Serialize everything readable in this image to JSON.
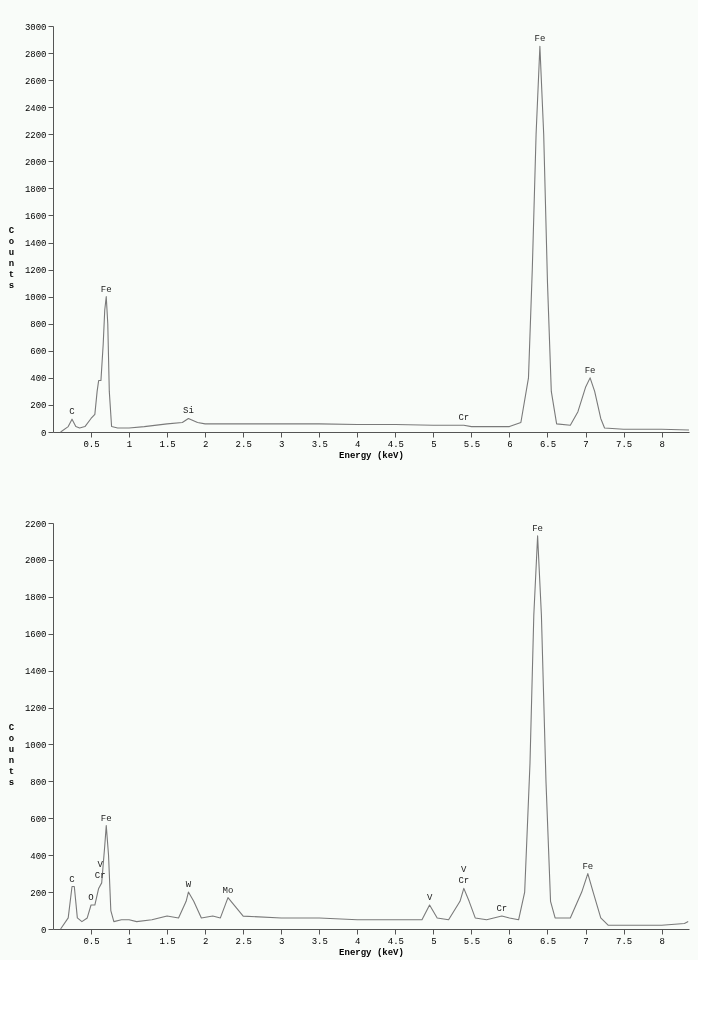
{
  "chart_data": [
    {
      "type": "line",
      "xlabel": "Energy (keV)",
      "ylabel": "Counts",
      "xlim": [
        0,
        8.36
      ],
      "ylim": [
        0,
        3000
      ],
      "xticks": [
        0.5,
        1,
        1.5,
        2,
        2.5,
        3,
        3.5,
        4,
        4.5,
        5,
        5.5,
        6,
        6.5,
        7,
        7.5,
        8
      ],
      "yticks": [
        0,
        200,
        400,
        600,
        800,
        1000,
        1200,
        1400,
        1600,
        1800,
        2000,
        2200,
        2400,
        2600,
        2800,
        3000
      ],
      "grid": false,
      "marker": "none",
      "line_style": "solid",
      "x": [
        0.1,
        0.2,
        0.25,
        0.3,
        0.35,
        0.42,
        0.5,
        0.55,
        0.58,
        0.6,
        0.63,
        0.66,
        0.68,
        0.7,
        0.72,
        0.74,
        0.77,
        0.85,
        1.0,
        1.2,
        1.5,
        1.7,
        1.78,
        1.9,
        2.0,
        2.5,
        3,
        3.5,
        4,
        4.5,
        5,
        5.4,
        5.5,
        6,
        6.15,
        6.25,
        6.3,
        6.35,
        6.4,
        6.45,
        6.5,
        6.55,
        6.62,
        6.8,
        6.9,
        7.0,
        7.06,
        7.12,
        7.2,
        7.25,
        7.5,
        8,
        8.36
      ],
      "series": [
        {
          "color": "#7a7a7a",
          "values": [
            0,
            40,
            95,
            40,
            30,
            40,
            100,
            130,
            300,
            380,
            380,
            650,
            900,
            1000,
            800,
            300,
            40,
            30,
            30,
            40,
            60,
            70,
            100,
            70,
            60,
            60,
            60,
            60,
            55,
            55,
            50,
            50,
            40,
            40,
            70,
            400,
            1200,
            2200,
            2850,
            2200,
            1100,
            300,
            60,
            50,
            150,
            330,
            400,
            300,
            100,
            30,
            20,
            20,
            15
          ]
        }
      ],
      "annotations": [
        {
          "text": "C",
          "x": 0.25,
          "y": 95
        },
        {
          "text": "Fe",
          "x": 0.7,
          "y": 1000
        },
        {
          "text": "Si",
          "x": 1.78,
          "y": 100
        },
        {
          "text": "Cr",
          "x": 5.4,
          "y": 50
        },
        {
          "text": "Fe",
          "x": 6.4,
          "y": 2850
        },
        {
          "text": "Fe",
          "x": 7.06,
          "y": 400
        }
      ]
    },
    {
      "type": "line",
      "xlabel": "Energy (keV)",
      "ylabel": "Counts",
      "xlim": [
        0,
        8.36
      ],
      "ylim": [
        0,
        2200
      ],
      "xticks": [
        0.5,
        1,
        1.5,
        2,
        2.5,
        3,
        3.5,
        4,
        4.5,
        5,
        5.5,
        6,
        6.5,
        7,
        7.5,
        8
      ],
      "yticks": [
        0,
        200,
        400,
        600,
        800,
        1000,
        1200,
        1400,
        1600,
        1800,
        2000,
        2200
      ],
      "grid": false,
      "marker": "none",
      "line_style": "solid",
      "x": [
        0.1,
        0.2,
        0.25,
        0.28,
        0.32,
        0.38,
        0.45,
        0.5,
        0.55,
        0.6,
        0.64,
        0.68,
        0.7,
        0.73,
        0.76,
        0.8,
        0.9,
        1.0,
        1.1,
        1.3,
        1.5,
        1.65,
        1.75,
        1.78,
        1.85,
        1.95,
        2.1,
        2.2,
        2.3,
        2.4,
        2.5,
        3,
        3.5,
        4,
        4.5,
        4.85,
        4.95,
        5.05,
        5.2,
        5.35,
        5.4,
        5.47,
        5.55,
        5.7,
        5.9,
        6.0,
        6.12,
        6.2,
        6.27,
        6.32,
        6.37,
        6.42,
        6.48,
        6.54,
        6.6,
        6.8,
        6.95,
        7.03,
        7.1,
        7.2,
        7.3,
        7.5,
        8,
        8.3,
        8.35
      ],
      "series": [
        {
          "color": "#7a7a7a",
          "values": [
            0,
            60,
            230,
            230,
            60,
            40,
            60,
            130,
            130,
            220,
            250,
            450,
            560,
            400,
            100,
            40,
            50,
            50,
            40,
            50,
            70,
            60,
            150,
            200,
            150,
            60,
            70,
            60,
            170,
            120,
            70,
            60,
            60,
            50,
            50,
            50,
            130,
            60,
            50,
            150,
            220,
            150,
            60,
            50,
            70,
            60,
            50,
            200,
            900,
            1700,
            2130,
            1700,
            800,
            150,
            60,
            60,
            200,
            300,
            200,
            60,
            20,
            20,
            20,
            30,
            40
          ]
        }
      ],
      "annotations": [
        {
          "text": "C",
          "x": 0.25,
          "y": 230
        },
        {
          "text": "O",
          "x": 0.5,
          "y": 130
        },
        {
          "text": "Cr",
          "x": 0.62,
          "y": 250
        },
        {
          "text": "V",
          "x": 0.62,
          "y": 250
        },
        {
          "text": "Fe",
          "x": 0.7,
          "y": 560
        },
        {
          "text": "W",
          "x": 1.78,
          "y": 200
        },
        {
          "text": "Mo",
          "x": 2.3,
          "y": 170
        },
        {
          "text": "V",
          "x": 4.95,
          "y": 130
        },
        {
          "text": "Cr",
          "x": 5.4,
          "y": 220
        },
        {
          "text": "V",
          "x": 5.4,
          "y": 220
        },
        {
          "text": "Cr",
          "x": 5.9,
          "y": 70
        },
        {
          "text": "Fe",
          "x": 6.37,
          "y": 2130
        },
        {
          "text": "Fe",
          "x": 7.03,
          "y": 300
        }
      ]
    }
  ]
}
